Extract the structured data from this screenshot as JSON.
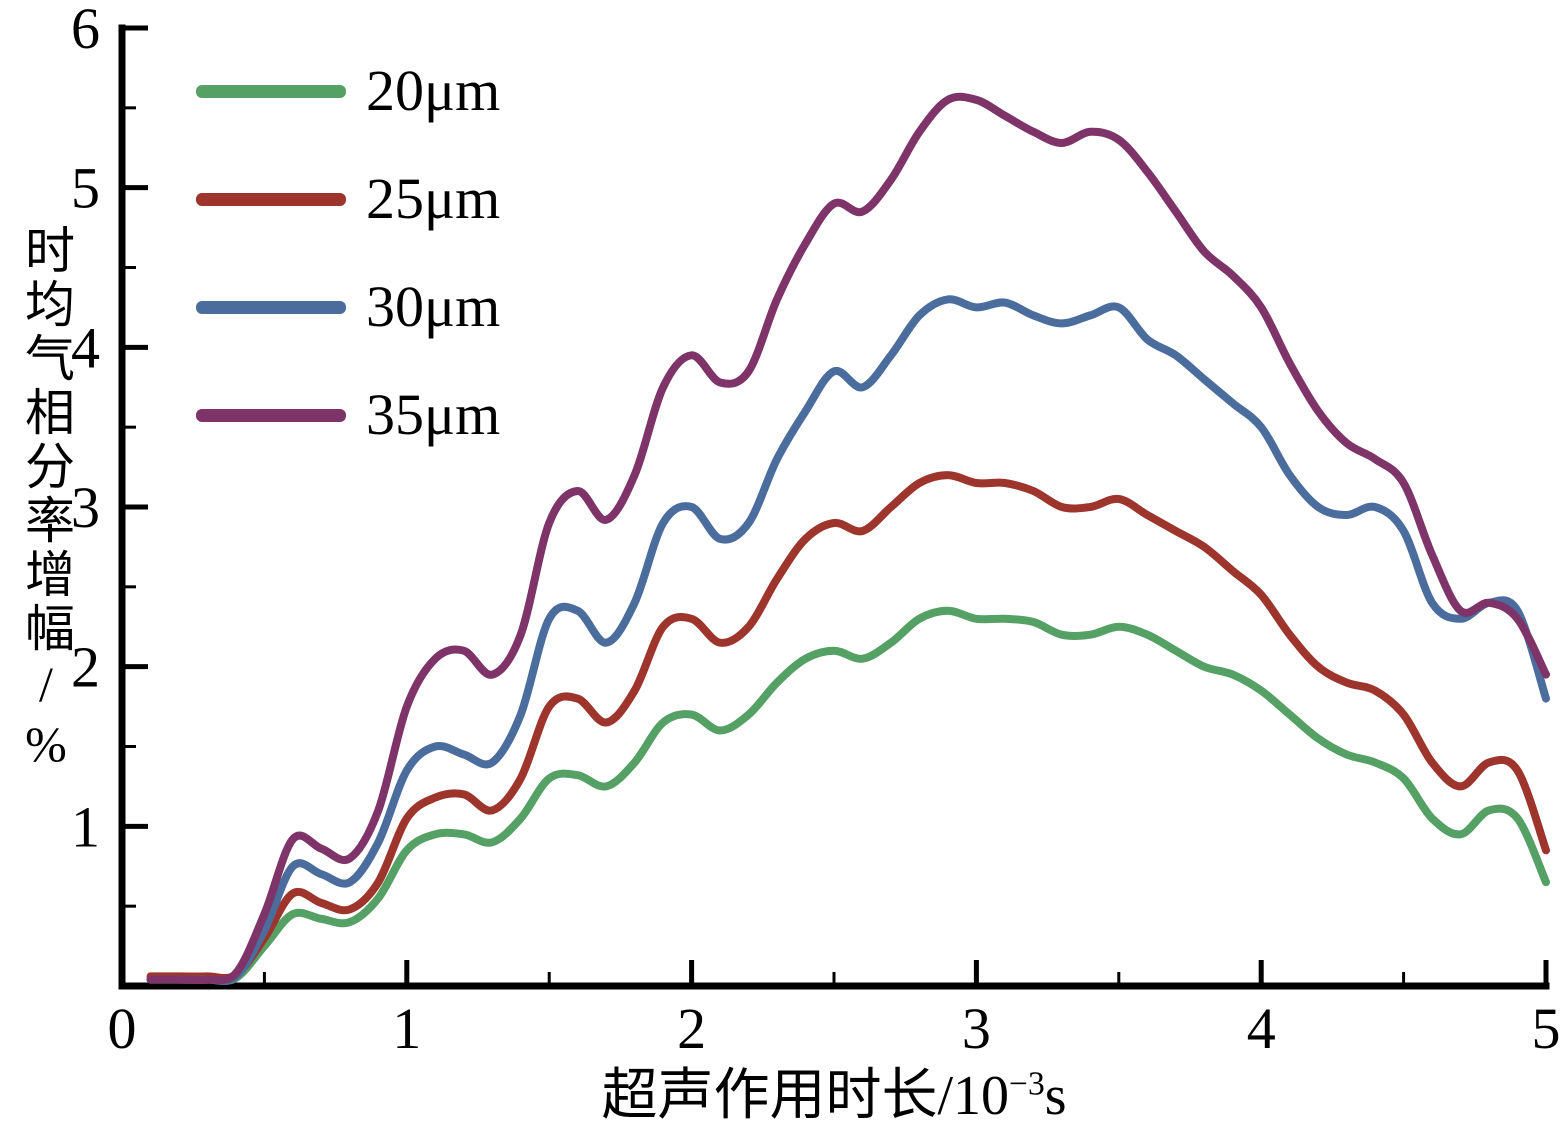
{
  "figure": {
    "xlabel_main": "超声作用时长/10",
    "xlabel_sup": "−3",
    "xlabel_unit": "s"
  },
  "chart_data": {
    "type": "line",
    "title": "",
    "xlabel": "超声作用时长/10⁻³s",
    "ylabel": "时均气相分率增幅/%",
    "xlim": [
      0,
      5
    ],
    "ylim": [
      0,
      6
    ],
    "x_ticks": [
      0,
      1,
      2,
      3,
      4,
      5
    ],
    "y_ticks": [
      1,
      2,
      3,
      4,
      5,
      6
    ],
    "minor_tick_step": 0.5,
    "grid": false,
    "legend_position": "top-left",
    "axis_color": "#000000",
    "x": [
      0.1,
      0.2,
      0.3,
      0.4,
      0.5,
      0.6,
      0.7,
      0.8,
      0.9,
      1.0,
      1.1,
      1.2,
      1.3,
      1.4,
      1.5,
      1.6,
      1.7,
      1.8,
      1.9,
      2.0,
      2.1,
      2.2,
      2.3,
      2.4,
      2.5,
      2.6,
      2.7,
      2.8,
      2.9,
      3.0,
      3.1,
      3.2,
      3.3,
      3.4,
      3.5,
      3.6,
      3.7,
      3.8,
      3.9,
      4.0,
      4.1,
      4.2,
      4.3,
      4.4,
      4.5,
      4.6,
      4.7,
      4.8,
      4.9,
      5.0
    ],
    "series": [
      {
        "name": "20μm",
        "color": "#55a065",
        "values": [
          0.04,
          0.04,
          0.04,
          0.05,
          0.25,
          0.45,
          0.42,
          0.4,
          0.55,
          0.85,
          0.95,
          0.95,
          0.9,
          1.05,
          1.3,
          1.32,
          1.25,
          1.4,
          1.65,
          1.7,
          1.6,
          1.7,
          1.9,
          2.05,
          2.1,
          2.05,
          2.15,
          2.3,
          2.35,
          2.3,
          2.3,
          2.28,
          2.2,
          2.2,
          2.25,
          2.2,
          2.1,
          2.0,
          1.95,
          1.85,
          1.7,
          1.55,
          1.45,
          1.4,
          1.3,
          1.05,
          0.95,
          1.1,
          1.05,
          0.65
        ]
      },
      {
        "name": "25μm",
        "color": "#9e352c",
        "values": [
          0.06,
          0.06,
          0.06,
          0.07,
          0.3,
          0.58,
          0.52,
          0.48,
          0.65,
          1.05,
          1.18,
          1.2,
          1.1,
          1.3,
          1.75,
          1.8,
          1.65,
          1.85,
          2.25,
          2.3,
          2.15,
          2.25,
          2.55,
          2.8,
          2.9,
          2.85,
          3.0,
          3.15,
          3.2,
          3.15,
          3.15,
          3.1,
          3.0,
          3.0,
          3.05,
          2.95,
          2.85,
          2.75,
          2.6,
          2.45,
          2.2,
          2.0,
          1.9,
          1.85,
          1.7,
          1.4,
          1.25,
          1.4,
          1.35,
          0.85
        ]
      },
      {
        "name": "30μm",
        "color": "#4a6d9e",
        "values": [
          0.04,
          0.04,
          0.04,
          0.06,
          0.35,
          0.75,
          0.7,
          0.65,
          0.9,
          1.35,
          1.5,
          1.45,
          1.4,
          1.7,
          2.3,
          2.35,
          2.15,
          2.4,
          2.9,
          3.0,
          2.8,
          2.9,
          3.3,
          3.6,
          3.85,
          3.75,
          3.95,
          4.2,
          4.3,
          4.25,
          4.28,
          4.2,
          4.15,
          4.2,
          4.25,
          4.05,
          3.95,
          3.8,
          3.65,
          3.5,
          3.2,
          3.0,
          2.95,
          3.0,
          2.85,
          2.4,
          2.3,
          2.4,
          2.35,
          1.8
        ]
      },
      {
        "name": "35μm",
        "color": "#7e3468",
        "values": [
          0.04,
          0.04,
          0.04,
          0.08,
          0.45,
          0.92,
          0.86,
          0.8,
          1.1,
          1.75,
          2.05,
          2.1,
          1.95,
          2.2,
          2.9,
          3.1,
          2.92,
          3.2,
          3.75,
          3.95,
          3.78,
          3.85,
          4.3,
          4.65,
          4.9,
          4.85,
          5.05,
          5.35,
          5.55,
          5.55,
          5.45,
          5.35,
          5.28,
          5.35,
          5.3,
          5.1,
          4.85,
          4.6,
          4.45,
          4.25,
          3.9,
          3.6,
          3.4,
          3.3,
          3.15,
          2.7,
          2.35,
          2.4,
          2.3,
          1.95
        ]
      }
    ]
  }
}
